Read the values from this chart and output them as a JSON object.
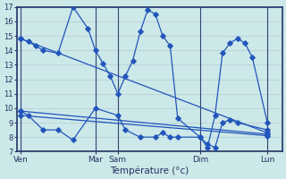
{
  "bg_color": "#cce8e8",
  "line_color": "#2255bb",
  "xlabel": "Température (°c)",
  "ylim": [
    7,
    17
  ],
  "yticks": [
    7,
    8,
    9,
    10,
    11,
    12,
    13,
    14,
    15,
    16,
    17
  ],
  "day_labels": [
    "Ven",
    "Mar",
    "Sam",
    "Dim",
    "Lun"
  ],
  "day_x": [
    0,
    10,
    13,
    24,
    33
  ],
  "xlim": [
    -0.5,
    35
  ],
  "dividers": [
    0,
    10,
    13,
    24,
    33
  ],
  "upper_x": [
    0,
    1,
    2,
    3,
    5,
    7,
    9,
    10,
    11,
    12,
    13,
    14,
    15,
    16,
    17,
    18,
    19,
    20,
    21,
    24,
    25,
    26,
    27,
    28,
    29,
    30,
    31,
    33
  ],
  "upper_y": [
    14.8,
    14.6,
    14.3,
    14.0,
    13.8,
    17.0,
    15.5,
    14.0,
    13.1,
    12.2,
    11.0,
    12.2,
    13.3,
    15.3,
    16.8,
    16.5,
    15.0,
    14.3,
    9.3,
    8.0,
    7.3,
    9.5,
    13.8,
    14.5,
    14.8,
    14.5,
    13.5,
    9.0
  ],
  "lower_x": [
    0,
    1,
    3,
    5,
    7,
    10,
    13,
    14,
    16,
    18,
    19,
    20,
    21,
    24,
    25,
    26,
    27,
    28,
    29,
    33
  ],
  "lower_y": [
    9.8,
    9.5,
    8.5,
    8.5,
    7.8,
    10.0,
    9.5,
    8.5,
    8.0,
    8.0,
    8.3,
    8.0,
    8.0,
    8.0,
    7.5,
    7.3,
    9.0,
    9.2,
    9.0,
    8.5
  ],
  "trend1_x": [
    0,
    33
  ],
  "trend1_y": [
    14.8,
    8.3
  ],
  "trend2_x": [
    0,
    33
  ],
  "trend2_y": [
    9.8,
    8.2
  ],
  "trend3_x": [
    0,
    33
  ],
  "trend3_y": [
    9.5,
    8.1
  ],
  "grid_color": "#aabbcc",
  "ytick_fontsize": 6,
  "xtick_fontsize": 6.5,
  "xlabel_fontsize": 7.5
}
